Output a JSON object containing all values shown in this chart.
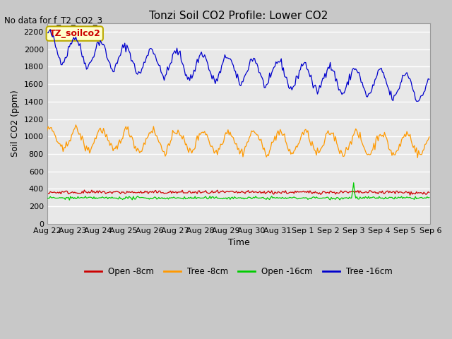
{
  "title": "Tonzi Soil CO2 Profile: Lower CO2",
  "no_data_text": "No data for f_T2_CO2_3",
  "ylabel": "Soil CO2 (ppm)",
  "xlabel": "Time",
  "annotation_text": "TZ_soilco2",
  "ylim": [
    0,
    2300
  ],
  "yticks": [
    0,
    200,
    400,
    600,
    800,
    1000,
    1200,
    1400,
    1600,
    1800,
    2000,
    2200
  ],
  "colors": {
    "open_8cm": "#cc0000",
    "tree_8cm": "#ff9900",
    "open_16cm": "#00cc00",
    "tree_16cm": "#0000cc"
  },
  "legend_labels": [
    "Open -8cm",
    "Tree -8cm",
    "Open -16cm",
    "Tree -16cm"
  ],
  "plot_bg": "#e8e8e8",
  "fig_bg": "#c8c8c8",
  "grid_color": "#ffffff",
  "x_labels": [
    "Aug 22",
    "Aug 23",
    "Aug 24",
    "Aug 25",
    "Aug 26",
    "Aug 27",
    "Aug 28",
    "Aug 29",
    "Aug 30",
    "Aug 31",
    "Sep 1",
    "Sep 2",
    "Sep 3",
    "Sep 4",
    "Sep 5",
    "Sep 6"
  ],
  "title_fontsize": 11,
  "label_fontsize": 9,
  "tick_fontsize": 8
}
